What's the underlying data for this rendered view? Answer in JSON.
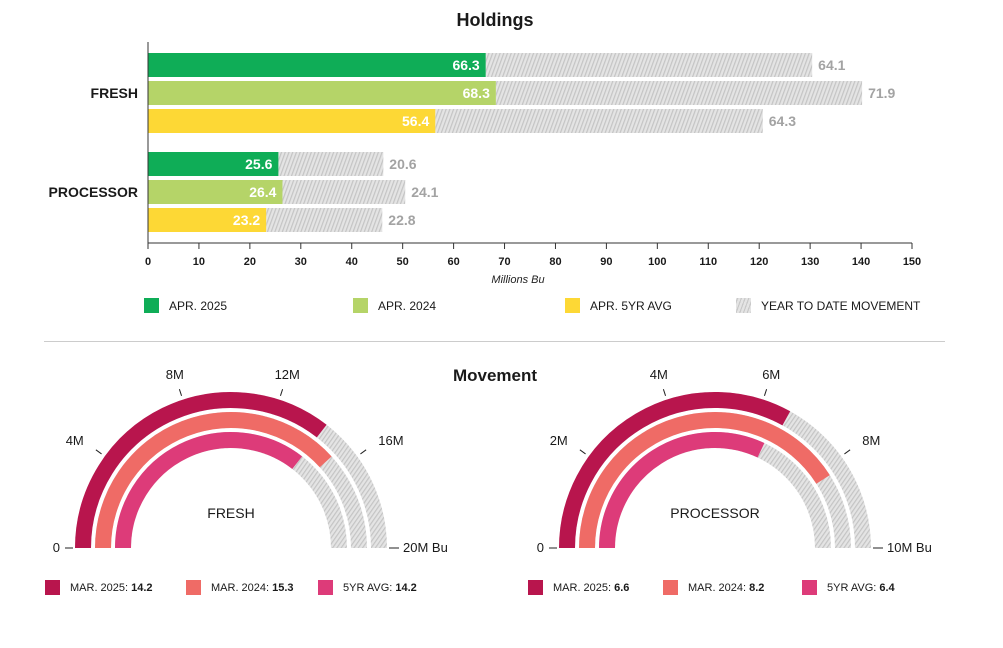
{
  "holdings": {
    "title": "Holdings",
    "xlabel": "Millions Bu",
    "ticks": [
      "0",
      "10",
      "20",
      "30",
      "40",
      "50",
      "60",
      "70",
      "80",
      "90",
      "100",
      "110",
      "120",
      "130",
      "140",
      "150"
    ],
    "legend": [
      {
        "label": "APR. 2025",
        "color": "#0fad57"
      },
      {
        "label": "APR. 2024",
        "color": "#b5d468"
      },
      {
        "label": "APR. 5YR AVG",
        "color": "#fdd835"
      },
      {
        "label": "YEAR TO DATE MOVEMENT",
        "color": "#e4e4e4"
      }
    ]
  },
  "movement": {
    "title": "Movement",
    "fresh": {
      "name": "FRESH",
      "ticks": [
        "0",
        "4M",
        "8M",
        "12M",
        "16M",
        "20M Bu"
      ],
      "legend": [
        {
          "label": "MAR. 2025:",
          "value": "14.2",
          "color": "#b8154d"
        },
        {
          "label": "MAR. 2024:",
          "value": "15.3",
          "color": "#ef6b66"
        },
        {
          "label": "5YR AVG:",
          "value": "14.2",
          "color": "#dd3b79"
        }
      ]
    },
    "processor": {
      "name": "PROCESSOR",
      "ticks": [
        "0",
        "2M",
        "4M",
        "6M",
        "8M",
        "10M Bu"
      ],
      "legend": [
        {
          "label": "MAR. 2025:",
          "value": "6.6",
          "color": "#b8154d"
        },
        {
          "label": "MAR. 2024:",
          "value": "8.2",
          "color": "#ef6b66"
        },
        {
          "label": "5YR AVG:",
          "value": "6.4",
          "color": "#dd3b79"
        }
      ]
    }
  },
  "chart_data": [
    {
      "type": "bar",
      "title": "Holdings",
      "xlabel": "Millions Bu",
      "xlim": [
        0,
        150
      ],
      "categories": [
        "FRESH",
        "PROCESSOR"
      ],
      "series": [
        {
          "name": "APR. 2025",
          "values": [
            66.3,
            25.6
          ],
          "total": [
            130.4,
            46.2
          ]
        },
        {
          "name": "APR. 2024",
          "values": [
            68.3,
            26.4
          ],
          "total": [
            140.2,
            50.5
          ]
        },
        {
          "name": "APR. 5YR AVG",
          "values": [
            56.4,
            23.2
          ],
          "total": [
            120.7,
            46.0
          ]
        }
      ],
      "movement_labels": [
        [
          64.1,
          71.9,
          64.3
        ],
        [
          20.6,
          24.1,
          22.8
        ]
      ],
      "legend": "bottom"
    },
    {
      "type": "gauge",
      "title": "Movement",
      "name": "FRESH",
      "max": 20,
      "unit": "M Bu",
      "series": [
        {
          "name": "MAR. 2025",
          "value": 14.2
        },
        {
          "name": "MAR. 2024",
          "value": 15.3
        },
        {
          "name": "5YR AVG",
          "value": 14.2
        }
      ]
    },
    {
      "type": "gauge",
      "name": "PROCESSOR",
      "max": 10,
      "unit": "M Bu",
      "series": [
        {
          "name": "MAR. 2025",
          "value": 6.6
        },
        {
          "name": "MAR. 2024",
          "value": 8.2
        },
        {
          "name": "5YR AVG",
          "value": 6.4
        }
      ]
    }
  ]
}
